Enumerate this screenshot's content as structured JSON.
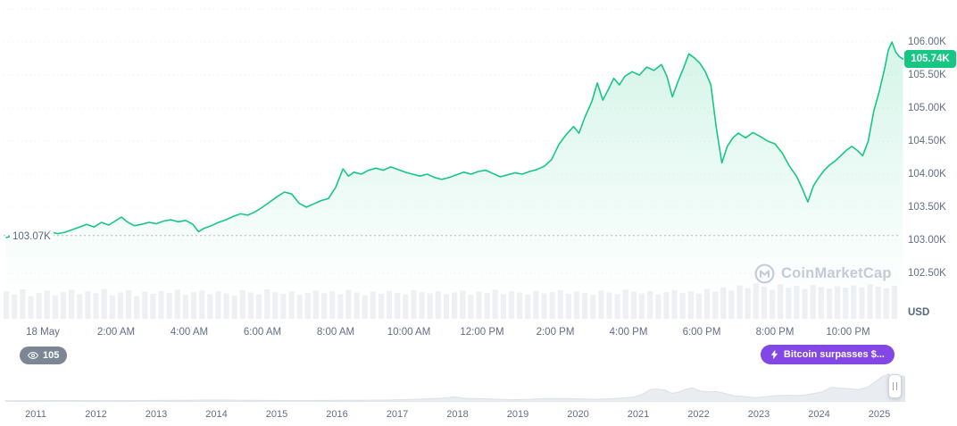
{
  "watermark": {
    "text": "CoinMarketCap"
  },
  "badges": {
    "watchers": {
      "count": "105"
    },
    "alert": {
      "text": "Bitcoin surpasses $..."
    }
  },
  "colors": {
    "line": "#16c784",
    "badge_green": "#16c784",
    "axis_text": "#616e85",
    "grid": "#e9edf2",
    "open_line": "#aeb6c4",
    "volume": "#eef0f4",
    "nav_fill": "#e9ecf1",
    "nav_stroke": "#dbe0e8",
    "alert_purple": "#8247e5"
  },
  "chart_data": [
    {
      "type": "area",
      "name": "btc-price-intraday-18-may",
      "currency": "USD",
      "open_value": 103.07,
      "open_label": "103.07K",
      "current_value": 105.74,
      "current_label": "105.74K",
      "ylim": [
        102.0,
        106.6
      ],
      "x_unit": "hour_of_day",
      "legend": "none",
      "grid": "dotted-horizontal",
      "y_ticks": [
        {
          "value": 106.5,
          "label": ""
        },
        {
          "value": 106.0,
          "label": "106.00K"
        },
        {
          "value": 105.5,
          "label": "105.50K"
        },
        {
          "value": 105.0,
          "label": "105.00K"
        },
        {
          "value": 104.5,
          "label": "104.50K"
        },
        {
          "value": 104.0,
          "label": "104.00K"
        },
        {
          "value": 103.5,
          "label": "103.50K"
        },
        {
          "value": 103.0,
          "label": "103.00K"
        },
        {
          "value": 102.5,
          "label": "102.50K"
        }
      ],
      "x_ticks": [
        {
          "hour": 0,
          "label": "18 May"
        },
        {
          "hour": 2,
          "label": "2:00 AM"
        },
        {
          "hour": 4,
          "label": "4:00 AM"
        },
        {
          "hour": 6,
          "label": "6:00 AM"
        },
        {
          "hour": 8,
          "label": "8:00 AM"
        },
        {
          "hour": 10,
          "label": "10:00 AM"
        },
        {
          "hour": 12,
          "label": "12:00 PM"
        },
        {
          "hour": 14,
          "label": "2:00 PM"
        },
        {
          "hour": 16,
          "label": "4:00 PM"
        },
        {
          "hour": 18,
          "label": "6:00 PM"
        },
        {
          "hour": 20,
          "label": "8:00 PM"
        },
        {
          "hour": 22,
          "label": "10:00 PM"
        }
      ],
      "points": [
        [
          -1.0,
          103.04
        ],
        [
          -0.8,
          103.07
        ],
        [
          -0.6,
          103.05
        ],
        [
          -0.4,
          103.09
        ],
        [
          -0.2,
          103.07
        ],
        [
          0,
          103.1
        ],
        [
          0.2,
          103.13
        ],
        [
          0.4,
          103.1
        ],
        [
          0.6,
          103.12
        ],
        [
          0.8,
          103.16
        ],
        [
          1.0,
          103.2
        ],
        [
          1.2,
          103.24
        ],
        [
          1.4,
          103.2
        ],
        [
          1.6,
          103.27
        ],
        [
          1.8,
          103.23
        ],
        [
          2.0,
          103.3
        ],
        [
          2.15,
          103.35
        ],
        [
          2.3,
          103.28
        ],
        [
          2.5,
          103.22
        ],
        [
          2.7,
          103.24
        ],
        [
          2.9,
          103.27
        ],
        [
          3.1,
          103.25
        ],
        [
          3.3,
          103.29
        ],
        [
          3.5,
          103.31
        ],
        [
          3.7,
          103.28
        ],
        [
          3.9,
          103.3
        ],
        [
          4.1,
          103.24
        ],
        [
          4.25,
          103.13
        ],
        [
          4.4,
          103.18
        ],
        [
          4.6,
          103.22
        ],
        [
          4.8,
          103.27
        ],
        [
          5.0,
          103.31
        ],
        [
          5.2,
          103.36
        ],
        [
          5.4,
          103.4
        ],
        [
          5.6,
          103.38
        ],
        [
          5.8,
          103.43
        ],
        [
          6.0,
          103.5
        ],
        [
          6.2,
          103.58
        ],
        [
          6.4,
          103.66
        ],
        [
          6.6,
          103.73
        ],
        [
          6.8,
          103.7
        ],
        [
          7.0,
          103.56
        ],
        [
          7.2,
          103.5
        ],
        [
          7.4,
          103.55
        ],
        [
          7.6,
          103.6
        ],
        [
          7.8,
          103.63
        ],
        [
          8.0,
          103.8
        ],
        [
          8.2,
          104.08
        ],
        [
          8.35,
          103.97
        ],
        [
          8.5,
          104.03
        ],
        [
          8.7,
          104.0
        ],
        [
          8.9,
          104.06
        ],
        [
          9.1,
          104.09
        ],
        [
          9.3,
          104.06
        ],
        [
          9.5,
          104.11
        ],
        [
          9.7,
          104.07
        ],
        [
          9.9,
          104.03
        ],
        [
          10.1,
          104.0
        ],
        [
          10.3,
          103.97
        ],
        [
          10.5,
          104.0
        ],
        [
          10.7,
          103.95
        ],
        [
          10.9,
          103.92
        ],
        [
          11.1,
          103.95
        ],
        [
          11.3,
          103.99
        ],
        [
          11.5,
          104.03
        ],
        [
          11.7,
          104.0
        ],
        [
          11.9,
          104.04
        ],
        [
          12.1,
          104.06
        ],
        [
          12.3,
          104.01
        ],
        [
          12.5,
          103.96
        ],
        [
          12.7,
          103.99
        ],
        [
          12.9,
          104.02
        ],
        [
          13.1,
          104.0
        ],
        [
          13.3,
          104.04
        ],
        [
          13.5,
          104.07
        ],
        [
          13.7,
          104.12
        ],
        [
          13.9,
          104.22
        ],
        [
          14.1,
          104.45
        ],
        [
          14.3,
          104.6
        ],
        [
          14.5,
          104.72
        ],
        [
          14.65,
          104.62
        ],
        [
          14.8,
          104.85
        ],
        [
          15.0,
          105.1
        ],
        [
          15.15,
          105.38
        ],
        [
          15.3,
          105.12
        ],
        [
          15.45,
          105.28
        ],
        [
          15.6,
          105.45
        ],
        [
          15.75,
          105.35
        ],
        [
          15.9,
          105.48
        ],
        [
          16.1,
          105.55
        ],
        [
          16.3,
          105.5
        ],
        [
          16.5,
          105.62
        ],
        [
          16.7,
          105.57
        ],
        [
          16.9,
          105.66
        ],
        [
          17.05,
          105.48
        ],
        [
          17.2,
          105.17
        ],
        [
          17.35,
          105.4
        ],
        [
          17.5,
          105.6
        ],
        [
          17.65,
          105.82
        ],
        [
          17.8,
          105.76
        ],
        [
          17.95,
          105.68
        ],
        [
          18.1,
          105.55
        ],
        [
          18.25,
          105.35
        ],
        [
          18.4,
          104.7
        ],
        [
          18.55,
          104.17
        ],
        [
          18.7,
          104.42
        ],
        [
          18.85,
          104.55
        ],
        [
          19.0,
          104.62
        ],
        [
          19.2,
          104.55
        ],
        [
          19.4,
          104.63
        ],
        [
          19.6,
          104.57
        ],
        [
          19.8,
          104.5
        ],
        [
          20.0,
          104.46
        ],
        [
          20.2,
          104.32
        ],
        [
          20.4,
          104.12
        ],
        [
          20.6,
          103.96
        ],
        [
          20.75,
          103.78
        ],
        [
          20.9,
          103.58
        ],
        [
          21.05,
          103.82
        ],
        [
          21.2,
          103.95
        ],
        [
          21.35,
          104.06
        ],
        [
          21.5,
          104.14
        ],
        [
          21.65,
          104.2
        ],
        [
          21.8,
          104.28
        ],
        [
          21.95,
          104.36
        ],
        [
          22.1,
          104.42
        ],
        [
          22.25,
          104.36
        ],
        [
          22.4,
          104.28
        ],
        [
          22.55,
          104.5
        ],
        [
          22.7,
          104.95
        ],
        [
          22.85,
          105.25
        ],
        [
          23.0,
          105.6
        ],
        [
          23.1,
          105.88
        ],
        [
          23.2,
          106.0
        ],
        [
          23.3,
          105.85
        ],
        [
          23.4,
          105.78
        ],
        [
          23.5,
          105.74
        ]
      ]
    },
    {
      "type": "bar",
      "name": "volume",
      "values": [
        0.7,
        0.62,
        0.75,
        0.58,
        0.66,
        0.72,
        0.6,
        0.68,
        0.74,
        0.63,
        0.7,
        0.65,
        0.76,
        0.6,
        0.67,
        0.73,
        0.58,
        0.69,
        0.64,
        0.71,
        0.66,
        0.74,
        0.61,
        0.68,
        0.72,
        0.63,
        0.7,
        0.65,
        0.59,
        0.73,
        0.67,
        0.62,
        0.75,
        0.68,
        0.64,
        0.7,
        0.61,
        0.66,
        0.72,
        0.65,
        0.7,
        0.63,
        0.74,
        0.67,
        0.6,
        0.69,
        0.64,
        0.71,
        0.66,
        0.62,
        0.73,
        0.68,
        0.65,
        0.7,
        0.63,
        0.67,
        0.72,
        0.61,
        0.69,
        0.66,
        0.74,
        0.63,
        0.7,
        0.67,
        0.62,
        0.71,
        0.65,
        0.68,
        0.73,
        0.64,
        0.7,
        0.66,
        0.61,
        0.72,
        0.67,
        0.63,
        0.74,
        0.69,
        0.65,
        0.71,
        0.62,
        0.68,
        0.73,
        0.66,
        0.7,
        0.64,
        0.76,
        0.69,
        0.8,
        0.72,
        0.85,
        0.78,
        0.9,
        0.82,
        0.74,
        0.88,
        0.79,
        0.84,
        0.76,
        0.86,
        0.81,
        0.77,
        0.83,
        0.79,
        0.85,
        0.8,
        0.88,
        0.82,
        0.78,
        0.84
      ]
    },
    {
      "type": "area",
      "name": "history-navigator",
      "x_unit": "year",
      "years": [
        {
          "year": 2011,
          "label": "2011"
        },
        {
          "year": 2012,
          "label": "2012"
        },
        {
          "year": 2013,
          "label": "2013"
        },
        {
          "year": 2014,
          "label": "2014"
        },
        {
          "year": 2015,
          "label": "2015"
        },
        {
          "year": 2016,
          "label": "2016"
        },
        {
          "year": 2017,
          "label": "2017"
        },
        {
          "year": 2018,
          "label": "2018"
        },
        {
          "year": 2019,
          "label": "2019"
        },
        {
          "year": 2020,
          "label": "2020"
        },
        {
          "year": 2021,
          "label": "2021"
        },
        {
          "year": 2022,
          "label": "2022"
        },
        {
          "year": 2023,
          "label": "2023"
        },
        {
          "year": 2024,
          "label": "2024"
        },
        {
          "year": 2025,
          "label": "2025"
        }
      ],
      "points": [
        [
          2010.5,
          0.01
        ],
        [
          2011,
          0.012
        ],
        [
          2011.5,
          0.015
        ],
        [
          2012,
          0.012
        ],
        [
          2012.5,
          0.014
        ],
        [
          2013,
          0.02
        ],
        [
          2013.5,
          0.025
        ],
        [
          2013.95,
          0.035
        ],
        [
          2014.3,
          0.028
        ],
        [
          2014.8,
          0.02
        ],
        [
          2015.3,
          0.016
        ],
        [
          2015.8,
          0.02
        ],
        [
          2016.3,
          0.025
        ],
        [
          2016.8,
          0.03
        ],
        [
          2017.3,
          0.06
        ],
        [
          2017.7,
          0.09
        ],
        [
          2017.95,
          0.14
        ],
        [
          2018.15,
          0.09
        ],
        [
          2018.5,
          0.075
        ],
        [
          2018.9,
          0.045
        ],
        [
          2019.2,
          0.06
        ],
        [
          2019.5,
          0.09
        ],
        [
          2019.8,
          0.08
        ],
        [
          2020.1,
          0.07
        ],
        [
          2020.3,
          0.06
        ],
        [
          2020.6,
          0.08
        ],
        [
          2020.9,
          0.13
        ],
        [
          2021.05,
          0.22
        ],
        [
          2021.2,
          0.4
        ],
        [
          2021.3,
          0.42
        ],
        [
          2021.45,
          0.38
        ],
        [
          2021.55,
          0.27
        ],
        [
          2021.65,
          0.3
        ],
        [
          2021.8,
          0.42
        ],
        [
          2021.9,
          0.46
        ],
        [
          2022.0,
          0.36
        ],
        [
          2022.15,
          0.32
        ],
        [
          2022.3,
          0.33
        ],
        [
          2022.45,
          0.26
        ],
        [
          2022.6,
          0.18
        ],
        [
          2022.8,
          0.15
        ],
        [
          2022.95,
          0.12
        ],
        [
          2023.1,
          0.15
        ],
        [
          2023.3,
          0.19
        ],
        [
          2023.5,
          0.2
        ],
        [
          2023.7,
          0.19
        ],
        [
          2023.9,
          0.26
        ],
        [
          2024.05,
          0.32
        ],
        [
          2024.2,
          0.48
        ],
        [
          2024.35,
          0.45
        ],
        [
          2024.5,
          0.43
        ],
        [
          2024.65,
          0.4
        ],
        [
          2024.8,
          0.48
        ],
        [
          2024.95,
          0.7
        ],
        [
          2025.05,
          0.85
        ],
        [
          2025.15,
          0.95
        ],
        [
          2025.22,
          0.78
        ],
        [
          2025.3,
          0.72
        ],
        [
          2025.38,
          0.88
        ],
        [
          2025.42,
          0.85
        ]
      ]
    }
  ]
}
